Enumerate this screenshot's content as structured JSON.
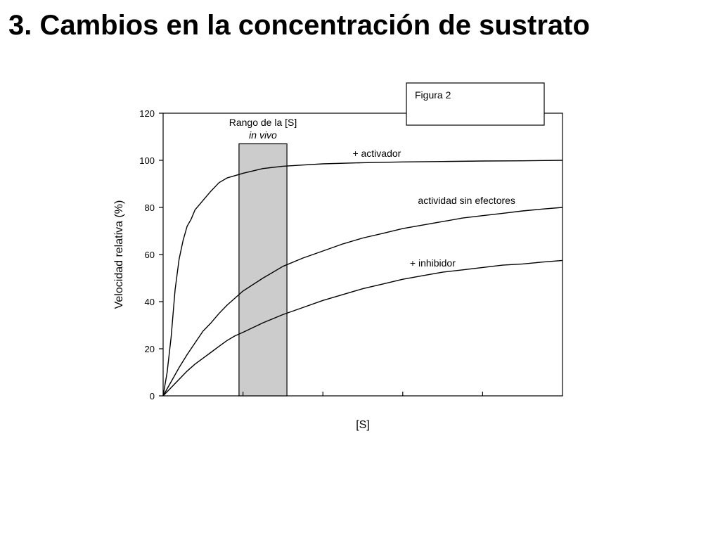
{
  "slide": {
    "title": "3. Cambios en la concentración de sustrato"
  },
  "chart_data": {
    "type": "line",
    "figure_label": "Figura 2",
    "xlabel": "[S]",
    "ylabel": "Velocidad relativa (%)",
    "ylim": [
      0,
      120
    ],
    "yticks": [
      0,
      20,
      40,
      60,
      80,
      100,
      120
    ],
    "xlim": [
      0,
      100
    ],
    "xticks": [
      20,
      40,
      60,
      80
    ],
    "grid": false,
    "legend": "none",
    "range_box": {
      "line1": "Rango de la [S]",
      "line2": "in vivo",
      "x": [
        19,
        31
      ],
      "y_top": 107,
      "fill": "#cccccc"
    },
    "series": [
      {
        "name": "+ activador",
        "color": "#000000",
        "points": [
          [
            0,
            0
          ],
          [
            1,
            10
          ],
          [
            2,
            25
          ],
          [
            3,
            45
          ],
          [
            4,
            58
          ],
          [
            5,
            66
          ],
          [
            6,
            72
          ],
          [
            7,
            75
          ],
          [
            8,
            79
          ],
          [
            10,
            83
          ],
          [
            12,
            87
          ],
          [
            14,
            90.5
          ],
          [
            16,
            92.5
          ],
          [
            18,
            93.5
          ],
          [
            20,
            94.5
          ],
          [
            25,
            96.5
          ],
          [
            30,
            97.5
          ],
          [
            35,
            98
          ],
          [
            40,
            98.5
          ],
          [
            50,
            99
          ],
          [
            60,
            99.3
          ],
          [
            70,
            99.5
          ],
          [
            80,
            99.7
          ],
          [
            90,
            99.8
          ],
          [
            100,
            100
          ]
        ]
      },
      {
        "name": "actividad sin efectores",
        "color": "#000000",
        "points": [
          [
            0,
            0
          ],
          [
            2,
            6
          ],
          [
            4,
            12
          ],
          [
            6,
            17.5
          ],
          [
            8,
            22.5
          ],
          [
            10,
            27.5
          ],
          [
            12,
            31
          ],
          [
            14,
            35
          ],
          [
            16,
            38.5
          ],
          [
            18,
            41.5
          ],
          [
            20,
            44.5
          ],
          [
            25,
            50
          ],
          [
            30,
            55
          ],
          [
            35,
            58.5
          ],
          [
            40,
            61.5
          ],
          [
            45,
            64.5
          ],
          [
            50,
            67
          ],
          [
            55,
            69
          ],
          [
            60,
            71
          ],
          [
            65,
            72.5
          ],
          [
            70,
            74
          ],
          [
            75,
            75.5
          ],
          [
            80,
            76.5
          ],
          [
            85,
            77.5
          ],
          [
            90,
            78.5
          ],
          [
            95,
            79.3
          ],
          [
            100,
            80
          ]
        ]
      },
      {
        "name": "+ inhibidor",
        "color": "#000000",
        "points": [
          [
            0,
            0
          ],
          [
            2,
            3.5
          ],
          [
            4,
            7
          ],
          [
            6,
            10.5
          ],
          [
            8,
            13.5
          ],
          [
            10,
            16
          ],
          [
            12,
            18.5
          ],
          [
            14,
            21
          ],
          [
            16,
            23.5
          ],
          [
            18,
            25.5
          ],
          [
            20,
            27
          ],
          [
            25,
            31
          ],
          [
            30,
            34.5
          ],
          [
            35,
            37.5
          ],
          [
            40,
            40.5
          ],
          [
            45,
            43
          ],
          [
            50,
            45.5
          ],
          [
            55,
            47.5
          ],
          [
            60,
            49.5
          ],
          [
            65,
            51
          ],
          [
            70,
            52.5
          ],
          [
            75,
            53.5
          ],
          [
            80,
            54.5
          ],
          [
            85,
            55.5
          ],
          [
            90,
            56
          ],
          [
            95,
            56.8
          ],
          [
            100,
            57.5
          ]
        ]
      }
    ],
    "annotations": [
      {
        "text": "+ activador",
        "x": 53.5,
        "y": 101.5
      },
      {
        "text": "actividad sin efectores",
        "x": 76,
        "y": 81.5
      },
      {
        "text": "+ inhibidor",
        "x": 67.5,
        "y": 55
      }
    ]
  }
}
